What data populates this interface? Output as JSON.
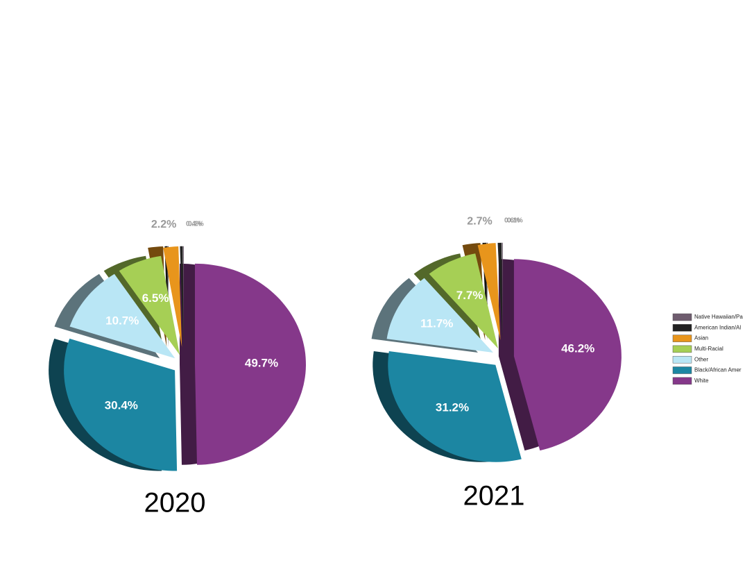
{
  "chart_data": [
    {
      "type": "pie",
      "title": "2020",
      "categories": [
        "Native Hawaiian/Pa",
        "American Indian/Al",
        "Asian",
        "Multi-Racial",
        "Other",
        "Black/African Amer",
        "White"
      ],
      "values": [
        0.1,
        0.4,
        2.2,
        6.5,
        10.7,
        30.4,
        49.7
      ],
      "value_labels": [
        "0.1%",
        "0.4%",
        "2.2%",
        "6.5%",
        "10.7%",
        "30.4%",
        "49.7%"
      ],
      "colors": [
        "#6e5c6e",
        "#222222",
        "#e8951c",
        "#a6cf55",
        "#b9e6f5",
        "#1c86a2",
        "#85388a"
      ],
      "legend": true
    },
    {
      "type": "pie",
      "title": "2021",
      "categories": [
        "Native Hawaiian/Pa",
        "American Indian/Al",
        "Asian",
        "Multi-Racial",
        "Other",
        "Black/African Amer",
        "White"
      ],
      "values": [
        0.1,
        0.6,
        2.7,
        7.7,
        11.7,
        31.2,
        46.2
      ],
      "value_labels": [
        "0.1%",
        "0.6%",
        "2.7%",
        "7.7%",
        "11.7%",
        "31.2%",
        "46.2%"
      ],
      "colors": [
        "#6e5c6e",
        "#222222",
        "#e8951c",
        "#a6cf55",
        "#b9e6f5",
        "#1c86a2",
        "#85388a"
      ],
      "legend": false
    }
  ]
}
